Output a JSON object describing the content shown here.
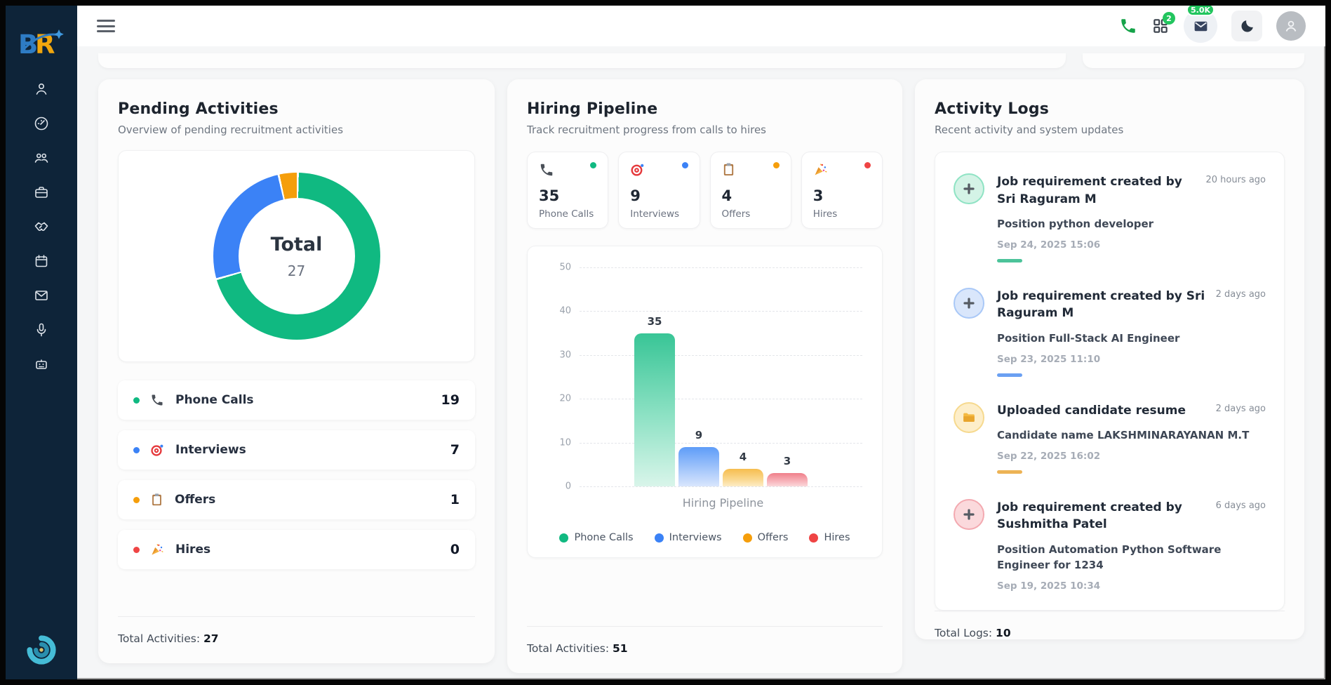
{
  "sidebar": {
    "logo_text_b": "B",
    "logo_text_r": "R",
    "items": [
      {
        "icon": "user-icon"
      },
      {
        "icon": "dashboard-gauge-icon"
      },
      {
        "icon": "team-icon"
      },
      {
        "icon": "briefcase-icon"
      },
      {
        "icon": "handshake-icon"
      },
      {
        "icon": "calendar-icon"
      },
      {
        "icon": "mail-icon"
      },
      {
        "icon": "microphone-icon"
      },
      {
        "icon": "robot-icon"
      }
    ],
    "bottom_logo": "spiral-logo"
  },
  "topbar": {
    "grid_badge": "2",
    "mail_badge": "5.0K"
  },
  "pending": {
    "title": "Pending Activities",
    "subtitle": "Overview of pending recruitment activities",
    "footer_label": "Total Activities:",
    "footer_value": "27"
  },
  "pipeline": {
    "title": "Hiring Pipeline",
    "subtitle": "Track recruitment progress from calls to hires",
    "footer_label": "Total Activities:",
    "footer_value": "51"
  },
  "chart_data": [
    {
      "type": "pie",
      "variant": "donut",
      "labels": [
        "Phone Calls",
        "Interviews",
        "Offers",
        "Hires"
      ],
      "values": [
        19,
        7,
        1,
        0
      ],
      "colors": [
        "#10b981",
        "#3b82f6",
        "#f59e0b",
        "#ef4444"
      ],
      "center_title": "Total",
      "center_value": "27",
      "legend_position": "below-as-rows",
      "start_angle_deg": 0,
      "direction": "clockwise"
    },
    {
      "type": "bar",
      "categories": [
        "Phone Calls",
        "Interviews",
        "Offers",
        "Hires"
      ],
      "values": [
        35,
        9,
        4,
        3
      ],
      "colors": [
        "#10b981",
        "#3b82f6",
        "#f59e0b",
        "#ef4444"
      ],
      "title": "",
      "xlabel": "Hiring Pipeline",
      "ylabel": "",
      "ylim": [
        0,
        50
      ],
      "yticks": [
        0,
        10,
        20,
        30,
        40,
        50
      ],
      "grid": "dashed-horizontal",
      "legend": [
        "Phone Calls",
        "Interviews",
        "Offers",
        "Hires"
      ],
      "legend_position": "bottom"
    }
  ],
  "logs": {
    "title": "Activity Logs",
    "subtitle": "Recent activity and system updates",
    "items": [
      {
        "icon": "plus-icon",
        "accent": "#10b981",
        "title": "Job requirement created by Sri Raguram M",
        "time_ago": "20 hours ago",
        "description": "Position python developer",
        "timestamp": "Sep 24, 2025 15:06"
      },
      {
        "icon": "plus-icon",
        "accent": "#3b82f6",
        "title": "Job requirement created by Sri Raguram M",
        "time_ago": "2 days ago",
        "description": "Position Full-Stack AI Engineer",
        "timestamp": "Sep 23, 2025 11:10"
      },
      {
        "icon": "folder-icon",
        "accent": "#f59e0b",
        "title": "Uploaded candidate resume",
        "time_ago": "2 days ago",
        "description": "Candidate name LAKSHMINARAYANAN M.T",
        "timestamp": "Sep 22, 2025 16:02"
      },
      {
        "icon": "plus-icon",
        "accent": "#ef4444",
        "title": "Job requirement created by Sushmitha Patel",
        "time_ago": "6 days ago",
        "description": "Position Automation Python Software Engineer for 1234",
        "timestamp": "Sep 19, 2025 10:34"
      }
    ],
    "footer_label": "Total Logs:",
    "footer_value": "10"
  }
}
